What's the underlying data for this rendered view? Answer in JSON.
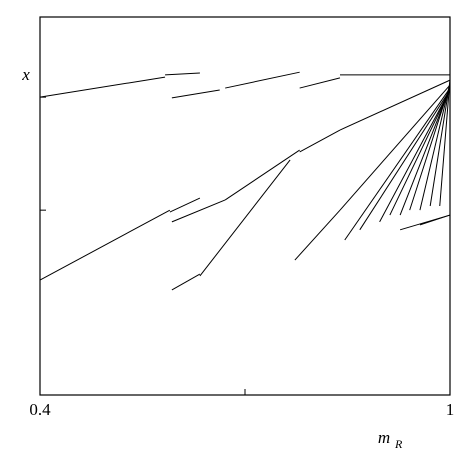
{
  "chart_data": {
    "type": "line",
    "color": "#000000",
    "xlabel": "m",
    "xlabel_subscript": "R",
    "ylabel": "x",
    "xlim": [
      0.4,
      1
    ],
    "xticks": [
      0.4,
      {
        "value": 0.7,
        "label": null
      },
      1
    ],
    "ylim": [
      0,
      1
    ],
    "yticks": [
      {
        "value": 0.489,
        "label": null
      },
      {
        "value": 0.788,
        "label": null
      }
    ],
    "series": [
      {
        "x": [
          0.4,
          0.583
        ],
        "values": [
          0.788,
          0.841
        ]
      },
      {
        "x": [
          0.583,
          0.634
        ],
        "values": [
          0.847,
          0.852
        ]
      },
      {
        "x": [
          0.593,
          0.663
        ],
        "values": [
          0.786,
          0.807
        ]
      },
      {
        "x": [
          0.671,
          0.78
        ],
        "values": [
          0.812,
          0.854
        ]
      },
      {
        "x": [
          0.78,
          0.839
        ],
        "values": [
          0.812,
          0.839
        ]
      },
      {
        "x": [
          0.839,
          1
        ],
        "values": [
          0.847,
          0.847
        ]
      },
      {
        "x": [
          0.4,
          0.59
        ],
        "values": [
          0.304,
          0.489
        ]
      },
      {
        "x": [
          0.59,
          0.634
        ],
        "values": [
          0.484,
          0.521
        ]
      },
      {
        "x": [
          0.593,
          0.671
        ],
        "values": [
          0.458,
          0.516
        ]
      },
      {
        "x": [
          0.671,
          0.78
        ],
        "values": [
          0.516,
          0.648
        ]
      },
      {
        "x": [
          0.78,
          0.839
        ],
        "values": [
          0.643,
          0.701
        ]
      },
      {
        "x": [
          0.839,
          1
        ],
        "values": [
          0.701,
          0.833
        ]
      },
      {
        "x": [
          0.593,
          0.634
        ],
        "values": [
          0.278,
          0.32
        ]
      },
      {
        "x": [
          0.634,
          0.766
        ],
        "values": [
          0.315,
          0.622
        ]
      },
      {
        "x": [
          0.773,
          0.839
        ],
        "values": [
          0.357,
          0.489
        ]
      },
      {
        "x": [
          0.839,
          1
        ],
        "values": [
          0.489,
          0.82
        ]
      },
      {
        "x": [
          0.846,
          1
        ],
        "values": [
          0.41,
          0.812
        ]
      },
      {
        "x": [
          0.868,
          1
        ],
        "values": [
          0.437,
          0.807
        ]
      },
      {
        "x": [
          0.897,
          1
        ],
        "values": [
          0.458,
          0.807
        ]
      },
      {
        "x": [
          0.912,
          1
        ],
        "values": [
          0.476,
          0.807
        ]
      },
      {
        "x": [
          0.927,
          1
        ],
        "values": [
          0.476,
          0.812
        ]
      },
      {
        "x": [
          0.941,
          1
        ],
        "values": [
          0.489,
          0.82
        ]
      },
      {
        "x": [
          0.956,
          1
        ],
        "values": [
          0.489,
          0.825
        ]
      },
      {
        "x": [
          0.971,
          1
        ],
        "values": [
          0.5,
          0.83
        ]
      },
      {
        "x": [
          0.985,
          1
        ],
        "values": [
          0.5,
          0.835
        ]
      },
      {
        "x": [
          0.927,
          1
        ],
        "values": [
          0.437,
          0.476
        ]
      },
      {
        "x": [
          0.956,
          1
        ],
        "values": [
          0.45,
          0.476
        ]
      }
    ]
  }
}
